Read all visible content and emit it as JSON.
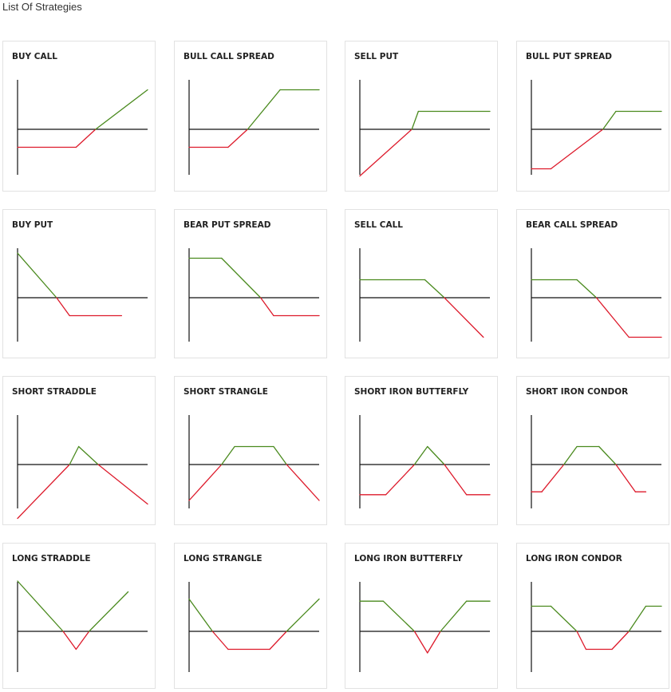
{
  "page": {
    "title": "List Of Strategies"
  },
  "colors": {
    "profit": "#4a8a1e",
    "loss": "#dd1a2b",
    "axis": "#111111",
    "border": "#e2e2e2"
  },
  "strategies": [
    {
      "label": "BUY CALL",
      "payoff": [
        [
          0,
          -25
        ],
        [
          45,
          -25
        ],
        [
          60,
          0
        ],
        [
          100,
          55
        ]
      ]
    },
    {
      "label": "BULL CALL SPREAD",
      "payoff": [
        [
          0,
          -25
        ],
        [
          30,
          -25
        ],
        [
          45,
          0
        ],
        [
          70,
          55
        ],
        [
          100,
          55
        ]
      ]
    },
    {
      "label": "SELL PUT",
      "payoff": [
        [
          0,
          -65
        ],
        [
          40,
          0
        ],
        [
          45,
          25
        ],
        [
          100,
          25
        ]
      ]
    },
    {
      "label": "BULL PUT SPREAD",
      "payoff": [
        [
          0,
          -55
        ],
        [
          15,
          -55
        ],
        [
          55,
          0
        ],
        [
          65,
          25
        ],
        [
          100,
          25
        ]
      ]
    },
    {
      "label": "BUY PUT",
      "payoff": [
        [
          0,
          62
        ],
        [
          30,
          0
        ],
        [
          40,
          -25
        ],
        [
          80,
          -25
        ]
      ]
    },
    {
      "label": "BEAR PUT SPREAD",
      "payoff": [
        [
          0,
          55
        ],
        [
          25,
          55
        ],
        [
          55,
          0
        ],
        [
          65,
          -25
        ],
        [
          100,
          -25
        ]
      ]
    },
    {
      "label": "SELL CALL",
      "payoff": [
        [
          0,
          25
        ],
        [
          50,
          25
        ],
        [
          65,
          0
        ],
        [
          95,
          -55
        ]
      ]
    },
    {
      "label": "BEAR CALL SPREAD",
      "payoff": [
        [
          0,
          25
        ],
        [
          35,
          25
        ],
        [
          50,
          0
        ],
        [
          75,
          -55
        ],
        [
          100,
          -55
        ]
      ]
    },
    {
      "label": "SHORT STRADDLE",
      "payoff": [
        [
          0,
          -75
        ],
        [
          40,
          0
        ],
        [
          47,
          25
        ],
        [
          62,
          0
        ],
        [
          100,
          -55
        ]
      ]
    },
    {
      "label": "SHORT STRANGLE",
      "payoff": [
        [
          0,
          -50
        ],
        [
          25,
          0
        ],
        [
          35,
          25
        ],
        [
          65,
          25
        ],
        [
          75,
          0
        ],
        [
          100,
          -50
        ]
      ]
    },
    {
      "label": "SHORT IRON BUTTERFLY",
      "payoff": [
        [
          0,
          -42
        ],
        [
          20,
          -42
        ],
        [
          42,
          0
        ],
        [
          52,
          25
        ],
        [
          65,
          0
        ],
        [
          82,
          -42
        ],
        [
          100,
          -42
        ]
      ]
    },
    {
      "label": "SHORT IRON CONDOR",
      "payoff": [
        [
          0,
          -38
        ],
        [
          8,
          -38
        ],
        [
          25,
          0
        ],
        [
          35,
          25
        ],
        [
          52,
          25
        ],
        [
          65,
          0
        ],
        [
          80,
          -38
        ],
        [
          88,
          -38
        ]
      ]
    },
    {
      "label": "LONG STRADDLE",
      "payoff": [
        [
          0,
          70
        ],
        [
          35,
          0
        ],
        [
          45,
          -25
        ],
        [
          55,
          0
        ],
        [
          85,
          55
        ]
      ]
    },
    {
      "label": "LONG STRANGLE",
      "payoff": [
        [
          0,
          45
        ],
        [
          18,
          0
        ],
        [
          30,
          -25
        ],
        [
          62,
          -25
        ],
        [
          75,
          0
        ],
        [
          100,
          45
        ]
      ]
    },
    {
      "label": "LONG IRON BUTTERFLY",
      "payoff": [
        [
          0,
          42
        ],
        [
          18,
          42
        ],
        [
          42,
          0
        ],
        [
          52,
          -30
        ],
        [
          62,
          0
        ],
        [
          82,
          42
        ],
        [
          100,
          42
        ]
      ]
    },
    {
      "label": "LONG IRON CONDOR",
      "payoff": [
        [
          0,
          35
        ],
        [
          15,
          35
        ],
        [
          35,
          0
        ],
        [
          42,
          -25
        ],
        [
          62,
          -25
        ],
        [
          75,
          0
        ],
        [
          88,
          35
        ],
        [
          100,
          35
        ]
      ]
    }
  ]
}
